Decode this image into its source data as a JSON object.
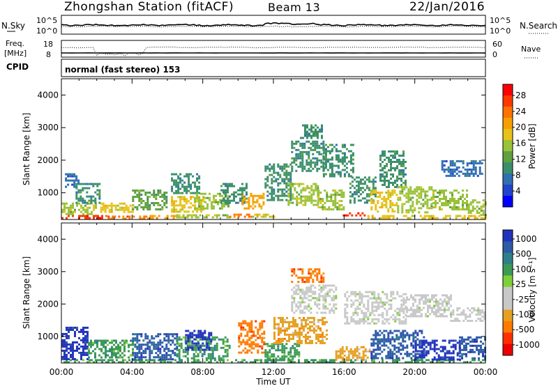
{
  "header": {
    "station": "Zhongshan Station (fitACF)",
    "beam": "Beam 13",
    "date": "22/Jan/2016"
  },
  "strips": {
    "nsky": {
      "label": "N.Sky",
      "ticks": [
        "10^5",
        "10^0"
      ]
    },
    "nsearch": {
      "label": "N.Search",
      "ticks": [
        "10^5",
        "10^0"
      ]
    },
    "freq": {
      "label1": "Freq.",
      "label2": "[MHz]",
      "ticks": [
        "18",
        "8"
      ]
    },
    "nave": {
      "label": "Nave",
      "ticks": [
        "60",
        "0"
      ]
    },
    "cpid": {
      "label": "CPID",
      "mode": "normal (fast stereo) 153"
    }
  },
  "chart_data": [
    {
      "type": "heatmap",
      "title": "Power",
      "xlabel": "Time UT",
      "ylabel": "Slant Range [km]",
      "x_ticks": [
        "00:00",
        "04:00",
        "08:00",
        "12:00",
        "16:00",
        "20:00",
        "00:00"
      ],
      "xlim_hours": [
        0,
        24
      ],
      "y_ticks": [
        1000,
        2000,
        3000,
        4000
      ],
      "ylim": [
        180,
        4500
      ],
      "colorbar": {
        "label": "Power [dB]",
        "tick_labels": [
          "4",
          "8",
          "12",
          "16",
          "20",
          "24",
          "28"
        ],
        "range": [
          0,
          30
        ],
        "colors": [
          "#0000ff",
          "#2244cc",
          "#2f6fb3",
          "#3a8f6a",
          "#5fa040",
          "#99c23a",
          "#e6c21a",
          "#f5a000",
          "#ff7200",
          "#ff3800",
          "#ff0000"
        ]
      },
      "patches": [
        {
          "t0": 0.0,
          "t1": 2.5,
          "r0": 200,
          "r1": 320,
          "level": 27
        },
        {
          "t0": 2.5,
          "t1": 5.0,
          "r0": 200,
          "r1": 300,
          "level": 25
        },
        {
          "t0": 5.0,
          "t1": 6.5,
          "r0": 220,
          "r1": 320,
          "level": 20
        },
        {
          "t0": 6.5,
          "t1": 9.5,
          "r0": 220,
          "r1": 340,
          "level": 16
        },
        {
          "t0": 9.5,
          "t1": 10.8,
          "r0": 240,
          "r1": 360,
          "level": 24
        },
        {
          "t0": 10.8,
          "t1": 12.0,
          "r0": 260,
          "r1": 360,
          "level": 18
        },
        {
          "t0": 15.8,
          "t1": 17.2,
          "r0": 300,
          "r1": 400,
          "level": 28
        },
        {
          "t0": 17.2,
          "t1": 24.0,
          "r0": 220,
          "r1": 320,
          "level": 18
        },
        {
          "t0": 0.0,
          "t1": 2.0,
          "r0": 350,
          "r1": 700,
          "level": 15
        },
        {
          "t0": 0.8,
          "t1": 2.2,
          "r0": 700,
          "r1": 1300,
          "level": 9
        },
        {
          "t0": 0.2,
          "t1": 1.0,
          "r0": 1200,
          "r1": 1600,
          "level": 7
        },
        {
          "t0": 2.2,
          "t1": 4.0,
          "r0": 400,
          "r1": 700,
          "level": 17
        },
        {
          "t0": 4.0,
          "t1": 6.0,
          "r0": 500,
          "r1": 1100,
          "level": 12
        },
        {
          "t0": 6.2,
          "t1": 8.0,
          "r0": 400,
          "r1": 900,
          "level": 18
        },
        {
          "t0": 6.2,
          "t1": 7.8,
          "r0": 1000,
          "r1": 1600,
          "level": 9
        },
        {
          "t0": 7.5,
          "t1": 9.5,
          "r0": 500,
          "r1": 1000,
          "level": 14
        },
        {
          "t0": 9.0,
          "t1": 10.5,
          "r0": 700,
          "r1": 1300,
          "level": 9
        },
        {
          "t0": 10.2,
          "t1": 11.5,
          "r0": 550,
          "r1": 1000,
          "level": 20
        },
        {
          "t0": 11.5,
          "t1": 13.0,
          "r0": 800,
          "r1": 1900,
          "level": 10
        },
        {
          "t0": 12.8,
          "t1": 14.5,
          "r0": 600,
          "r1": 1300,
          "level": 15
        },
        {
          "t0": 13.0,
          "t1": 14.8,
          "r0": 1700,
          "r1": 2600,
          "level": 8
        },
        {
          "t0": 13.5,
          "t1": 14.8,
          "r0": 2700,
          "r1": 3100,
          "level": 9
        },
        {
          "t0": 14.8,
          "t1": 16.5,
          "r0": 1500,
          "r1": 2500,
          "level": 9
        },
        {
          "t0": 14.5,
          "t1": 16.0,
          "r0": 500,
          "r1": 1100,
          "level": 15
        },
        {
          "t0": 16.3,
          "t1": 17.8,
          "r0": 700,
          "r1": 1500,
          "level": 10
        },
        {
          "t0": 17.5,
          "t1": 19.0,
          "r0": 450,
          "r1": 1100,
          "level": 17
        },
        {
          "t0": 18.0,
          "t1": 19.5,
          "r0": 1200,
          "r1": 2300,
          "level": 9
        },
        {
          "t0": 19.0,
          "t1": 21.0,
          "r0": 400,
          "r1": 1200,
          "level": 14
        },
        {
          "t0": 21.0,
          "t1": 23.0,
          "r0": 500,
          "r1": 1100,
          "level": 16
        },
        {
          "t0": 21.5,
          "t1": 23.8,
          "r0": 1500,
          "r1": 2000,
          "level": 7
        },
        {
          "t0": 23.0,
          "t1": 24.0,
          "r0": 350,
          "r1": 800,
          "level": 15
        }
      ]
    },
    {
      "type": "heatmap",
      "title": "Velocity",
      "xlabel": "Time UT",
      "ylabel": "Slant Range [km]",
      "x_ticks": [
        "00:00",
        "04:00",
        "08:00",
        "12:00",
        "16:00",
        "20:00",
        "00:00"
      ],
      "xlim_hours": [
        0,
        24
      ],
      "y_ticks": [
        1000,
        2000,
        3000,
        4000
      ],
      "ylim": [
        180,
        4500
      ],
      "colorbar": {
        "label": "Velocity [m s⁻¹]",
        "tick_labels": [
          "1000",
          "500",
          "100",
          "25",
          "-25",
          "-100",
          "-500",
          "-1000"
        ],
        "colors": [
          "#2233bb",
          "#2e5aa8",
          "#2f7f8a",
          "#3c9a55",
          "#7fcf3a",
          "#c8c8c8",
          "#c8c8c8",
          "#e6a020",
          "#ff7a00",
          "#ff3000",
          "#ee0000"
        ]
      },
      "patches": [
        {
          "t0": 0.0,
          "t1": 24.0,
          "r0": 200,
          "r1": 300,
          "level": "100"
        },
        {
          "t0": 0.0,
          "t1": 1.5,
          "r0": 300,
          "r1": 1300,
          "level": "1000"
        },
        {
          "t0": 1.5,
          "t1": 4.0,
          "r0": 350,
          "r1": 900,
          "level": "100"
        },
        {
          "t0": 4.0,
          "t1": 6.5,
          "r0": 300,
          "r1": 1100,
          "level": "500"
        },
        {
          "t0": 6.5,
          "t1": 9.5,
          "r0": 300,
          "r1": 1000,
          "level": "100"
        },
        {
          "t0": 7.0,
          "t1": 8.5,
          "r0": 600,
          "r1": 1200,
          "level": "1000"
        },
        {
          "t0": 10.0,
          "t1": 11.5,
          "r0": 500,
          "r1": 1500,
          "level": "-500"
        },
        {
          "t0": 11.5,
          "t1": 13.5,
          "r0": 300,
          "r1": 800,
          "level": "100"
        },
        {
          "t0": 12.0,
          "t1": 15.0,
          "r0": 800,
          "r1": 1600,
          "level": "-100"
        },
        {
          "t0": 13.0,
          "t1": 14.8,
          "r0": 2700,
          "r1": 3100,
          "level": "-500"
        },
        {
          "t0": 13.0,
          "t1": 15.5,
          "r0": 1700,
          "r1": 2600,
          "level": "-25"
        },
        {
          "t0": 15.5,
          "t1": 17.5,
          "r0": 300,
          "r1": 700,
          "level": "-100"
        },
        {
          "t0": 16.0,
          "t1": 19.5,
          "r0": 1400,
          "r1": 2400,
          "level": "-25"
        },
        {
          "t0": 17.5,
          "t1": 20.5,
          "r0": 300,
          "r1": 1200,
          "level": "500"
        },
        {
          "t0": 19.5,
          "t1": 22.0,
          "r0": 1600,
          "r1": 2300,
          "level": "-25"
        },
        {
          "t0": 20.0,
          "t1": 22.5,
          "r0": 300,
          "r1": 900,
          "level": "1000"
        },
        {
          "t0": 22.0,
          "t1": 24.0,
          "r0": 1500,
          "r1": 1900,
          "level": "-25"
        },
        {
          "t0": 22.5,
          "t1": 24.0,
          "r0": 300,
          "r1": 1000,
          "level": "500"
        }
      ]
    }
  ]
}
